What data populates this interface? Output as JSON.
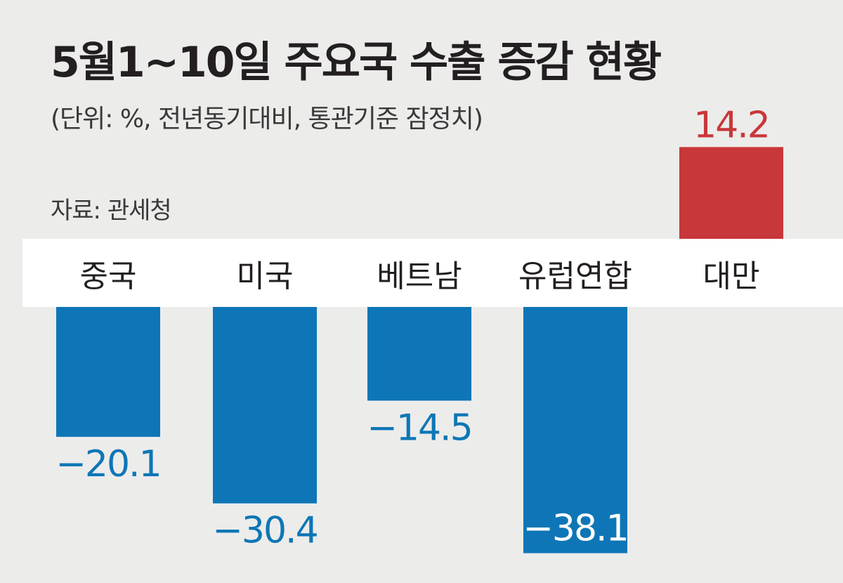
{
  "title": "5월1~10일 주요국 수출 증감 현황",
  "subtitle": "(단위: %, 전년동기대비, 통관기준 잠정치)",
  "source": "자료: 관세청",
  "colors": {
    "negative": "#0e76b6",
    "positive": "#c8373a",
    "band": "#ffffff",
    "background": "#ececeb"
  },
  "chart_data": {
    "type": "bar",
    "categories": [
      "중국",
      "미국",
      "베트남",
      "유럽연합",
      "대만"
    ],
    "values": [
      -20.1,
      -30.4,
      -14.5,
      -38.1,
      14.2
    ],
    "value_labels": [
      "−20.1",
      "−30.4",
      "−14.5",
      "−38.1",
      "14.2"
    ],
    "title": "5월1~10일 주요국 수출 증감 현황",
    "xlabel": "",
    "ylabel": "",
    "unit": "%",
    "grid": false,
    "legend": "none"
  }
}
